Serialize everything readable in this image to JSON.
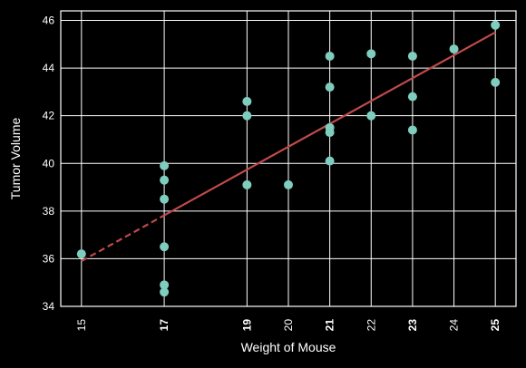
{
  "chart_data": {
    "type": "scatter",
    "title": "",
    "xlabel": "Weight of Mouse",
    "ylabel": "Tumor Volume",
    "xlim": [
      14.5,
      25.5
    ],
    "ylim": [
      34,
      46.4
    ],
    "grid": true,
    "background": "#000000",
    "grid_color": "#ffffff",
    "x_ticks": [
      15,
      17,
      19,
      20,
      21,
      22,
      23,
      24,
      25
    ],
    "x_tick_labels": [
      "15",
      "17",
      "19",
      "20",
      "21",
      "22",
      "23",
      "24",
      "25"
    ],
    "bold_x_ticks": [
      "17",
      "19",
      "21",
      "23",
      "25"
    ],
    "y_ticks": [
      34,
      36,
      38,
      40,
      42,
      44,
      46
    ],
    "y_tick_labels": [
      "34",
      "36",
      "38",
      "40",
      "42",
      "44",
      "46"
    ],
    "points": [
      {
        "x": 15,
        "y": 36.2
      },
      {
        "x": 17,
        "y": 39.9
      },
      {
        "x": 17,
        "y": 39.3
      },
      {
        "x": 17,
        "y": 38.5
      },
      {
        "x": 17,
        "y": 36.5
      },
      {
        "x": 17,
        "y": 34.9
      },
      {
        "x": 17,
        "y": 34.6
      },
      {
        "x": 19,
        "y": 42.6
      },
      {
        "x": 19,
        "y": 42.0
      },
      {
        "x": 19,
        "y": 39.1
      },
      {
        "x": 20,
        "y": 39.1
      },
      {
        "x": 21,
        "y": 44.5
      },
      {
        "x": 21,
        "y": 43.2
      },
      {
        "x": 21,
        "y": 41.5
      },
      {
        "x": 21,
        "y": 41.3
      },
      {
        "x": 21,
        "y": 40.1
      },
      {
        "x": 22,
        "y": 44.6
      },
      {
        "x": 22,
        "y": 42.0
      },
      {
        "x": 23,
        "y": 44.5
      },
      {
        "x": 23,
        "y": 42.8
      },
      {
        "x": 23,
        "y": 41.4
      },
      {
        "x": 24,
        "y": 44.8
      },
      {
        "x": 25,
        "y": 45.8
      },
      {
        "x": 25,
        "y": 43.4
      }
    ],
    "point_color": "#7ecdbf",
    "regression": {
      "x_start": 15,
      "x_end": 25,
      "y_start": 35.9,
      "y_end": 45.5,
      "color": "#c04a4a",
      "dashed_until_x": 17
    }
  }
}
